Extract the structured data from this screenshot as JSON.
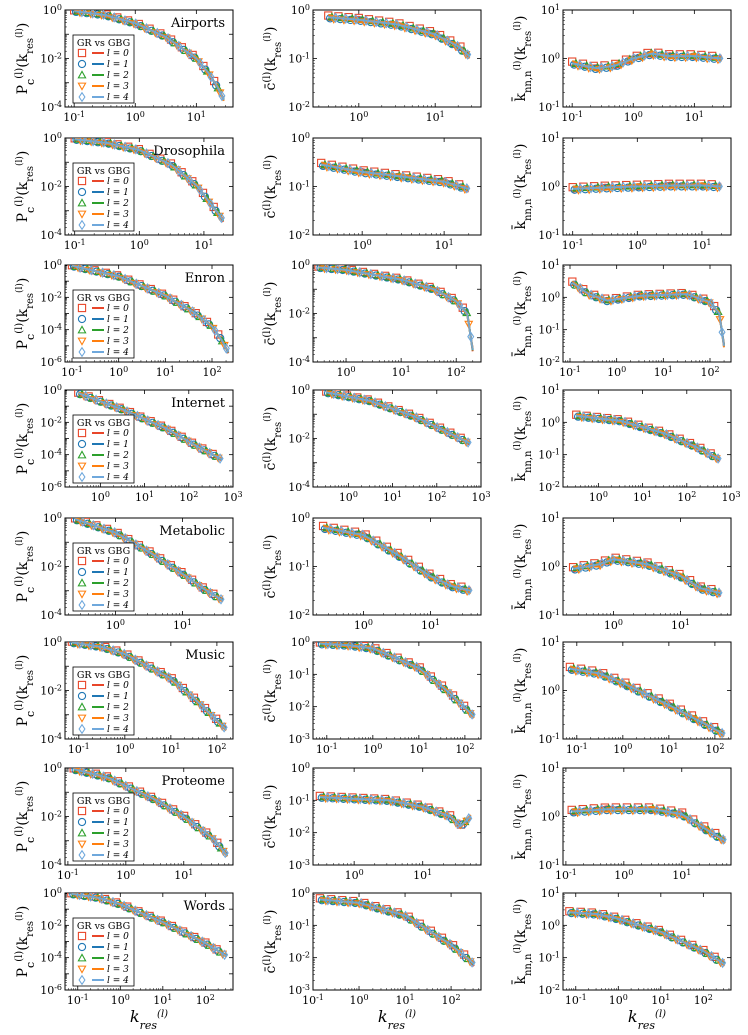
{
  "figure": {
    "x_label_html": "k<tspan baseline-shift='sub' font-size='11'>res</tspan>",
    "x_label_text": "k_res^(l)",
    "y_labels": {
      "pc": "P_c^(l)(k_res^(l))",
      "c": "c̄^(l)(k_res^(l))",
      "knn": "k̄_nn,n^(l)(k_res^(l))"
    },
    "legend": {
      "title": "GR vs GBG",
      "entries": [
        "l = 0",
        "l = 1",
        "l = 2",
        "l = 3",
        "l = 4"
      ],
      "colors": [
        "#e8462a",
        "#1f77b4",
        "#2ca02c",
        "#ff7f0e",
        "#6fa8dc"
      ],
      "markers": [
        "square",
        "circle",
        "triangle-up",
        "triangle-down",
        "diamond"
      ]
    }
  },
  "chart_data": [
    {
      "network": "Airports",
      "type": "line",
      "panels": {
        "pc": {
          "xlim": [
            -1.15,
            1.6
          ],
          "ylim": [
            -4,
            0
          ],
          "x": [
            -1,
            -0.5,
            0,
            0.5,
            1,
            1.2,
            1.35,
            1.45
          ],
          "y": [
            -0.05,
            -0.2,
            -0.55,
            -1.1,
            -2.0,
            -2.6,
            -3.2,
            -3.7
          ]
        },
        "c": {
          "xlim": [
            -0.6,
            1.6
          ],
          "ylim": [
            -2,
            0
          ],
          "x": [
            -0.4,
            0,
            0.5,
            1,
            1.3,
            1.45
          ],
          "y": [
            -0.15,
            -0.2,
            -0.3,
            -0.5,
            -0.75,
            -0.95
          ]
        },
        "knn": {
          "xlim": [
            -1.15,
            1.6
          ],
          "ylim": [
            -1,
            1
          ],
          "x": [
            -1,
            -0.6,
            -0.3,
            0,
            0.3,
            0.6,
            1,
            1.45
          ],
          "y": [
            -0.1,
            -0.2,
            -0.15,
            0.0,
            0.1,
            0.05,
            0.05,
            0.0
          ]
        }
      }
    },
    {
      "network": "Drosophila",
      "type": "line",
      "panels": {
        "pc": {
          "xlim": [
            -1.15,
            1.45
          ],
          "ylim": [
            -4,
            0
          ],
          "x": [
            -1,
            -0.5,
            0,
            0.5,
            0.9,
            1.1,
            1.3
          ],
          "y": [
            -0.05,
            -0.2,
            -0.5,
            -1.1,
            -2.0,
            -2.7,
            -3.4
          ]
        },
        "c": {
          "xlim": [
            -0.6,
            1.45
          ],
          "ylim": [
            -2,
            0
          ],
          "x": [
            -0.5,
            0,
            0.5,
            1,
            1.3
          ],
          "y": [
            -0.55,
            -0.7,
            -0.8,
            -0.9,
            -1.05
          ]
        },
        "knn": {
          "xlim": [
            -1.15,
            1.45
          ],
          "ylim": [
            -1,
            1
          ],
          "x": [
            -1,
            -0.5,
            0,
            0.5,
            1,
            1.3
          ],
          "y": [
            -0.05,
            -0.02,
            0.0,
            0.02,
            0.02,
            0.0
          ]
        }
      }
    },
    {
      "network": "Enron",
      "type": "line",
      "panels": {
        "pc": {
          "xlim": [
            -1.15,
            2.45
          ],
          "ylim": [
            -6,
            0
          ],
          "x": [
            -1,
            0,
            1,
            1.6,
            2.0,
            2.2,
            2.35
          ],
          "y": [
            -0.05,
            -0.7,
            -1.9,
            -2.9,
            -3.8,
            -4.6,
            -5.4
          ]
        },
        "c": {
          "xlim": [
            -0.6,
            2.45
          ],
          "ylim": [
            -4,
            0
          ],
          "x": [
            -0.5,
            0,
            1,
            1.6,
            2.0,
            2.2,
            2.3
          ],
          "y": [
            -0.1,
            -0.2,
            -0.6,
            -1.0,
            -1.5,
            -2.0,
            -3.5
          ]
        },
        "knn": {
          "xlim": [
            -1.15,
            2.45
          ],
          "ylim": [
            -2,
            1
          ],
          "x": [
            -0.95,
            -0.6,
            -0.2,
            0.5,
            1.5,
            2.0,
            2.2,
            2.3
          ],
          "y": [
            0.45,
            0.1,
            -0.1,
            0.05,
            0.1,
            -0.15,
            -0.5,
            -1.5
          ]
        }
      }
    },
    {
      "network": "Internet",
      "type": "line",
      "panels": {
        "pc": {
          "xlim": [
            -0.8,
            3.0
          ],
          "ylim": [
            -6,
            0
          ],
          "x": [
            -0.5,
            0.5,
            1.5,
            2.2,
            2.75
          ],
          "y": [
            -0.2,
            -1.2,
            -2.4,
            -3.5,
            -4.3
          ]
        },
        "c": {
          "xlim": [
            -0.8,
            3.0
          ],
          "ylim": [
            -4,
            0
          ],
          "x": [
            -0.5,
            0.5,
            1.5,
            2.2,
            2.75
          ],
          "y": [
            -0.1,
            -0.45,
            -1.1,
            -1.7,
            -2.2
          ]
        },
        "knn": {
          "xlim": [
            -0.8,
            3.0
          ],
          "ylim": [
            -2,
            1
          ],
          "x": [
            -0.5,
            0.5,
            1.5,
            2.2,
            2.75
          ],
          "y": [
            0.2,
            0.05,
            -0.35,
            -0.75,
            -1.15
          ]
        }
      }
    },
    {
      "network": "Metabolic",
      "type": "line",
      "panels": {
        "pc": {
          "xlim": [
            -0.75,
            1.75
          ],
          "ylim": [
            -4,
            0
          ],
          "x": [
            -0.6,
            0,
            0.5,
            1,
            1.3,
            1.6
          ],
          "y": [
            -0.05,
            -0.6,
            -1.4,
            -2.3,
            -2.9,
            -3.4
          ]
        },
        "c": {
          "xlim": [
            -0.75,
            1.75
          ],
          "ylim": [
            -2,
            0
          ],
          "x": [
            -0.6,
            0,
            0.5,
            1,
            1.3,
            1.6
          ],
          "y": [
            -0.2,
            -0.35,
            -0.75,
            -1.2,
            -1.4,
            -1.5
          ]
        },
        "knn": {
          "xlim": [
            -0.75,
            1.75
          ],
          "ylim": [
            -1,
            1
          ],
          "x": [
            -0.6,
            -0.2,
            0,
            0.5,
            1,
            1.3,
            1.6
          ],
          "y": [
            -0.05,
            0.05,
            0.15,
            0.05,
            -0.2,
            -0.45,
            -0.55
          ]
        }
      }
    },
    {
      "network": "Music",
      "type": "line",
      "panels": {
        "pc": {
          "xlim": [
            -1.3,
            2.35
          ],
          "ylim": [
            -4,
            0
          ],
          "x": [
            -1.15,
            -0.5,
            0,
            1,
            1.6,
            2.2
          ],
          "y": [
            -0.02,
            -0.2,
            -0.5,
            -1.5,
            -2.5,
            -3.6
          ]
        },
        "c": {
          "xlim": [
            -1.3,
            2.35
          ],
          "ylim": [
            -3,
            0
          ],
          "x": [
            -1.15,
            -0.5,
            0,
            1,
            1.6,
            2.2
          ],
          "y": [
            -0.05,
            -0.1,
            -0.2,
            -0.8,
            -1.5,
            -2.3
          ]
        },
        "knn": {
          "xlim": [
            -1.3,
            2.35
          ],
          "ylim": [
            -1,
            1
          ],
          "x": [
            -1.15,
            -0.5,
            0,
            1,
            1.6,
            2.2
          ],
          "y": [
            0.45,
            0.35,
            0.15,
            -0.3,
            -0.6,
            -0.9
          ]
        }
      }
    },
    {
      "network": "Proteome",
      "type": "line",
      "panels": {
        "pc": {
          "xlim": [
            -1.05,
            1.85
          ],
          "ylim": [
            -4,
            0
          ],
          "x": [
            -0.9,
            -0.3,
            0.5,
            1,
            1.5,
            1.75
          ],
          "y": [
            -0.05,
            -0.4,
            -1.3,
            -2.0,
            -2.9,
            -3.6
          ]
        },
        "c": {
          "xlim": [
            -0.6,
            1.85
          ],
          "ylim": [
            -3,
            0
          ],
          "x": [
            -0.5,
            0,
            0.5,
            1,
            1.4,
            1.55,
            1.7
          ],
          "y": [
            -0.9,
            -0.95,
            -1.0,
            -1.2,
            -1.5,
            -1.8,
            -1.5
          ]
        },
        "knn": {
          "xlim": [
            -1.05,
            1.85
          ],
          "ylim": [
            -1,
            1
          ],
          "x": [
            -0.9,
            -0.3,
            0.5,
            1,
            1.4,
            1.75
          ],
          "y": [
            0.1,
            0.15,
            0.15,
            0.05,
            -0.25,
            -0.5
          ]
        }
      }
    },
    {
      "network": "Words",
      "type": "line",
      "panels": {
        "pc": {
          "xlim": [
            -1.3,
            2.65
          ],
          "ylim": [
            -6,
            0
          ],
          "x": [
            -1.15,
            -0.5,
            0,
            1,
            2,
            2.5
          ],
          "y": [
            -0.05,
            -0.3,
            -0.7,
            -1.8,
            -3.1,
            -3.9
          ]
        },
        "c": {
          "xlim": [
            -1.0,
            2.65
          ],
          "ylim": [
            -3,
            0
          ],
          "x": [
            -0.85,
            0,
            1,
            2,
            2.5
          ],
          "y": [
            -0.2,
            -0.3,
            -0.7,
            -1.6,
            -2.2
          ]
        },
        "knn": {
          "xlim": [
            -1.3,
            2.65
          ],
          "ylim": [
            -2,
            1
          ],
          "x": [
            -1.15,
            -0.5,
            0,
            1,
            2,
            2.5
          ],
          "y": [
            0.4,
            0.35,
            0.2,
            -0.2,
            -0.8,
            -1.2
          ]
        }
      }
    }
  ]
}
